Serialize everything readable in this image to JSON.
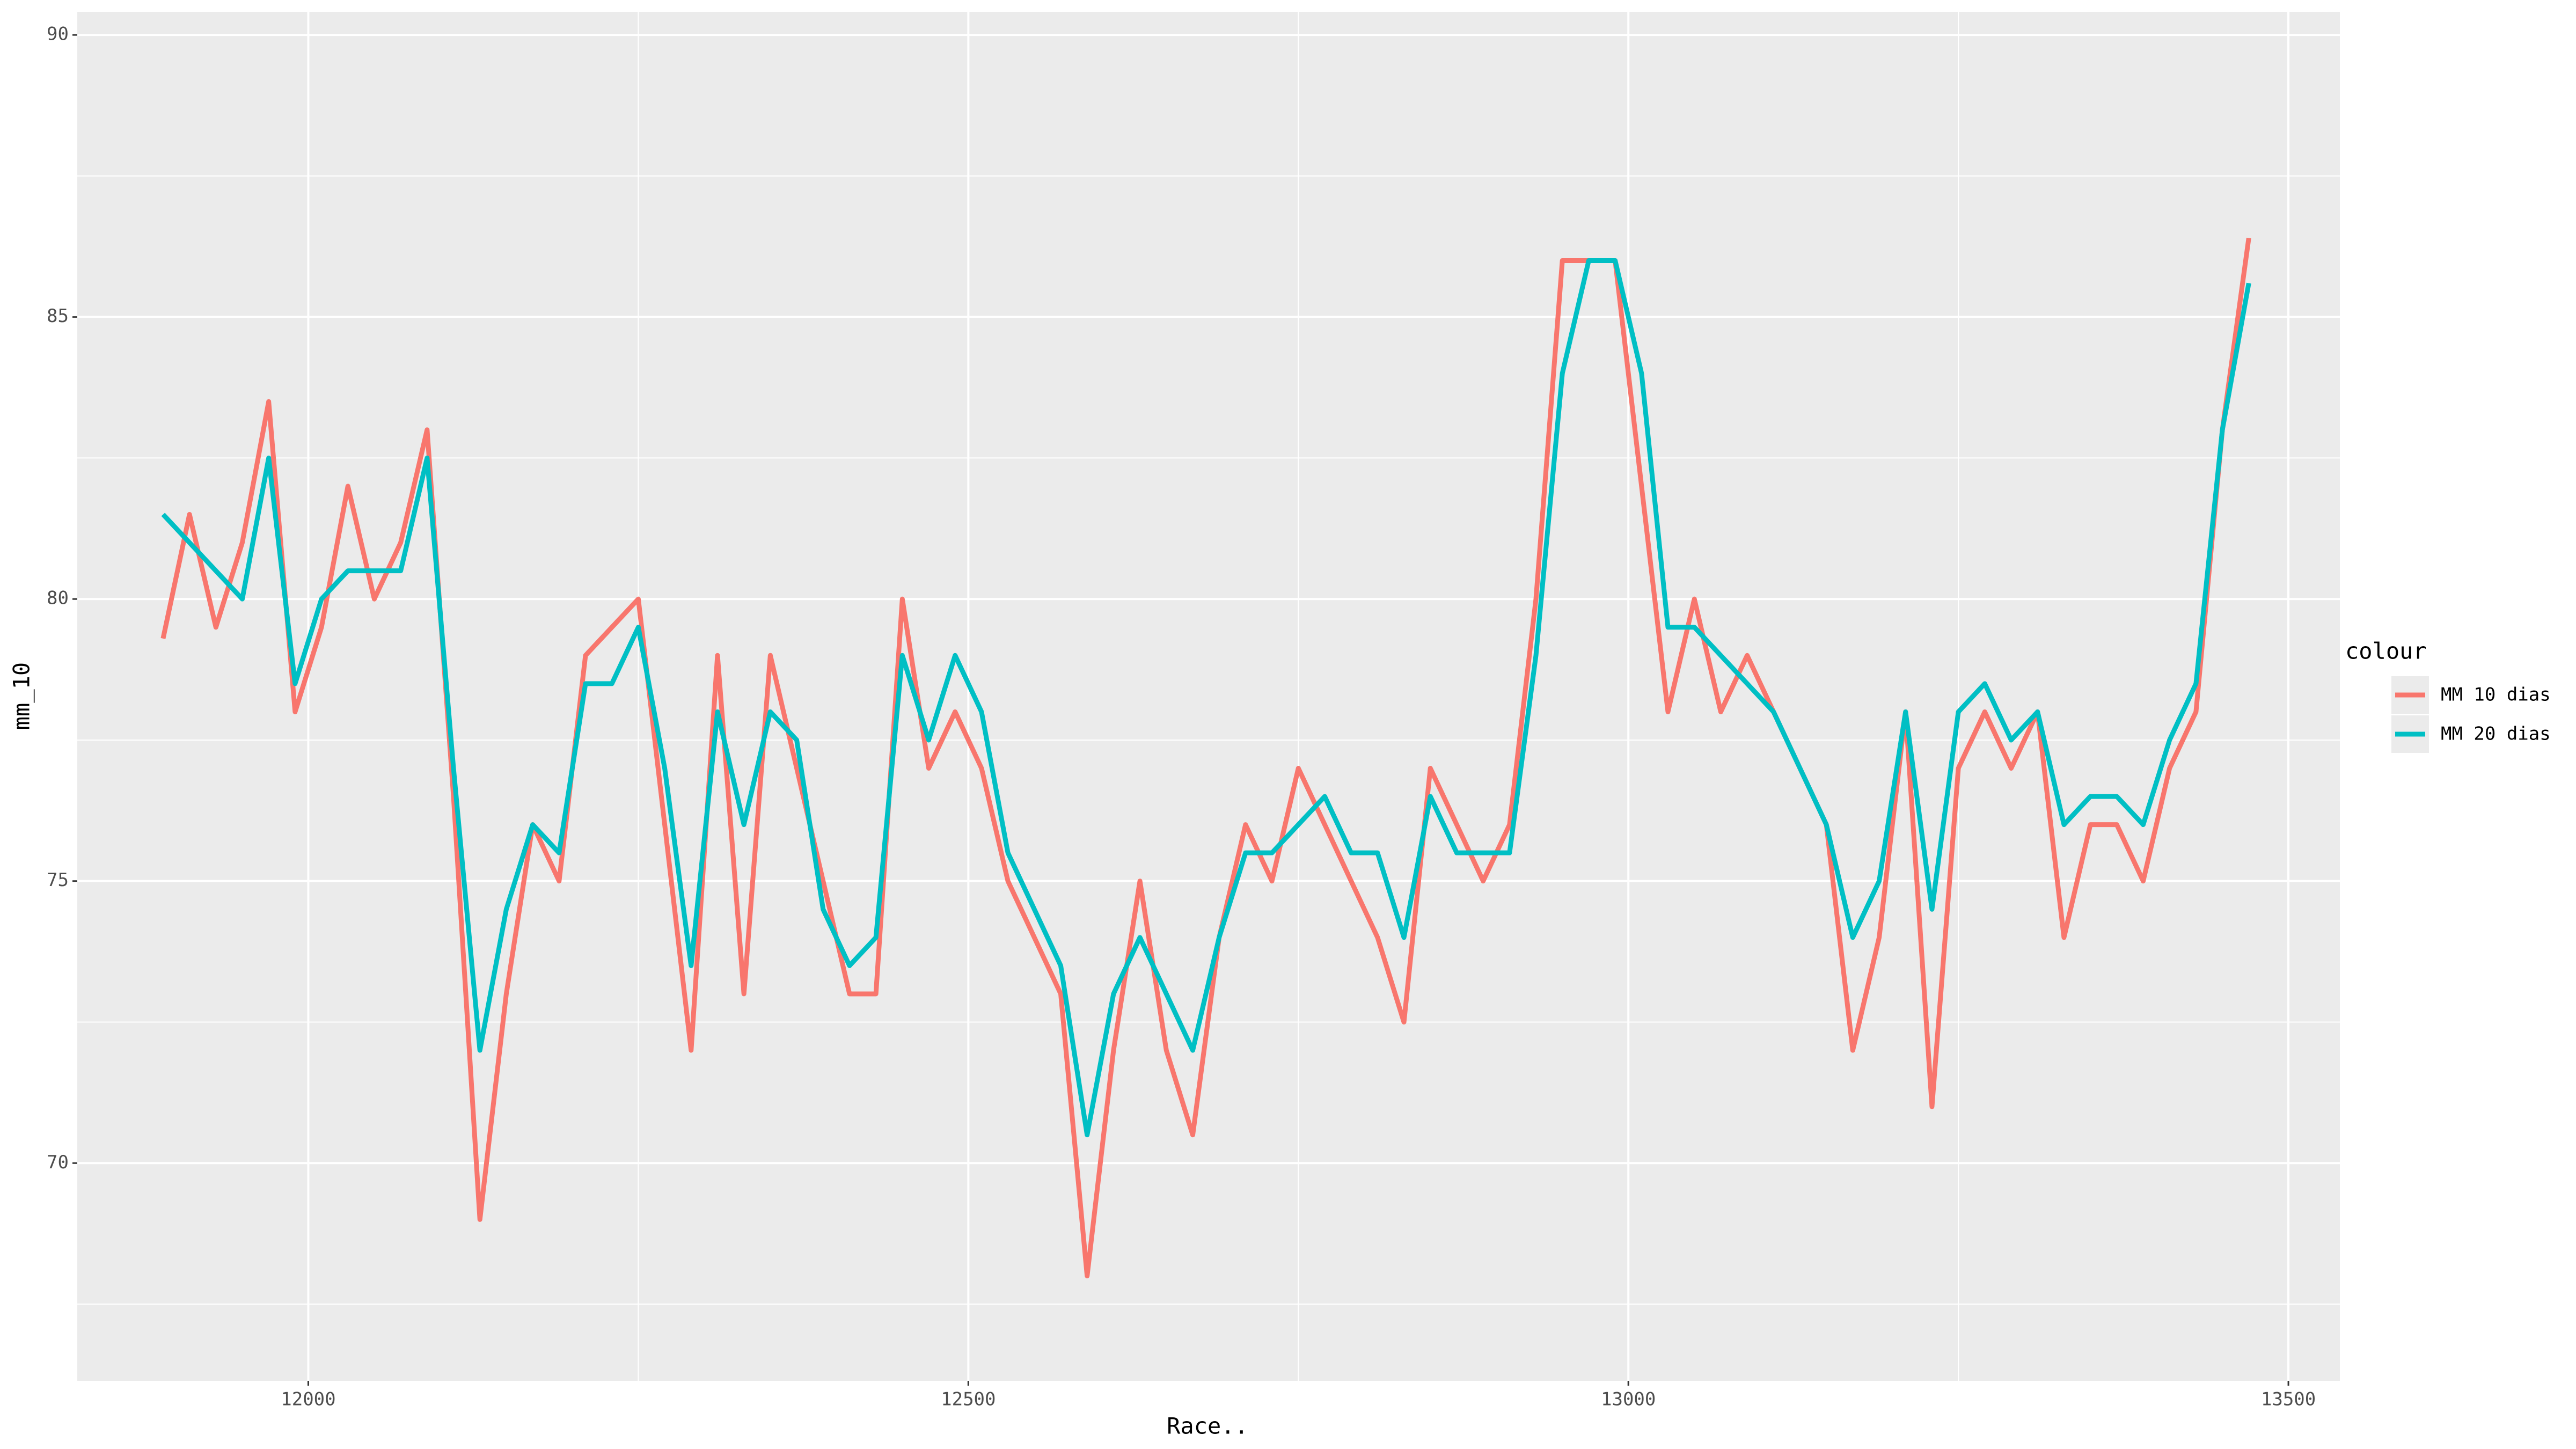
{
  "chart_data": {
    "type": "line",
    "xlabel": "Race..",
    "ylabel": "mm_10",
    "legend_title": "colour",
    "legend": "right",
    "grid": true,
    "xlim": [
      11825,
      13539
    ],
    "xticks": [
      12000,
      12500,
      13000,
      13500
    ],
    "xminor": [
      12250,
      12750,
      13250
    ],
    "ylim": [
      66.14,
      90.41
    ],
    "yticks": [
      70,
      75,
      80,
      85,
      90
    ],
    "yminor": [
      67.5,
      72.5,
      77.5,
      82.5,
      87.5
    ],
    "x": [
      11890,
      11910,
      11930,
      11950,
      11970,
      11990,
      12010,
      12030,
      12050,
      12070,
      12090,
      12110,
      12130,
      12150,
      12170,
      12190,
      12210,
      12230,
      12250,
      12270,
      12290,
      12310,
      12330,
      12350,
      12370,
      12390,
      12410,
      12430,
      12450,
      12470,
      12490,
      12510,
      12530,
      12550,
      12570,
      12590,
      12610,
      12630,
      12650,
      12670,
      12690,
      12710,
      12730,
      12750,
      12770,
      12790,
      12810,
      12830,
      12850,
      12870,
      12890,
      12910,
      12930,
      12950,
      12970,
      12990,
      13010,
      13030,
      13050,
      13070,
      13090,
      13110,
      13130,
      13150,
      13170,
      13190,
      13210,
      13230,
      13250,
      13270,
      13290,
      13310,
      13330,
      13350,
      13370,
      13390,
      13410,
      13430,
      13450,
      13470
    ],
    "series": [
      {
        "name": "MM 10 dias",
        "color": "#f8766d",
        "values": [
          79.3,
          81.5,
          79.5,
          81,
          83.5,
          78,
          79.5,
          82,
          80,
          81,
          83,
          76.5,
          69,
          73,
          76,
          75,
          79,
          79.5,
          80,
          76,
          72,
          79,
          73,
          79,
          77,
          75,
          73,
          73,
          80,
          77,
          78,
          77,
          75,
          74,
          73,
          68,
          72,
          75,
          72,
          70.5,
          74,
          76,
          75,
          77,
          76,
          75,
          74,
          72.5,
          77,
          76,
          75,
          76,
          80,
          86,
          86,
          86,
          82,
          78,
          80,
          78,
          79,
          78,
          77,
          76,
          72,
          74,
          78,
          71,
          77,
          78,
          77,
          78,
          74,
          76,
          76,
          75,
          77,
          78,
          83,
          86.4
        ]
      },
      {
        "name": "MM 20 dias",
        "color": "#00bfc4",
        "values": [
          81.5,
          81,
          80.5,
          80,
          82.5,
          78.5,
          80,
          80.5,
          80.5,
          80.5,
          82.5,
          77,
          72,
          74.5,
          76,
          75.5,
          78.5,
          78.5,
          79.5,
          77,
          73.5,
          78,
          76,
          78,
          77.5,
          74.5,
          73.5,
          74,
          79,
          77.5,
          79,
          78,
          75.5,
          74.5,
          73.5,
          70.5,
          73,
          74,
          73,
          72,
          74,
          75.5,
          75.5,
          76,
          76.5,
          75.5,
          75.5,
          74,
          76.5,
          75.5,
          75.5,
          75.5,
          79,
          84,
          86,
          86,
          84,
          79.5,
          79.5,
          79,
          78.5,
          78,
          77,
          76,
          74,
          75,
          78,
          74.5,
          78,
          78.5,
          77.5,
          78,
          76,
          76.5,
          76.5,
          76,
          77.5,
          78.5,
          83,
          85.6
        ]
      }
    ]
  }
}
